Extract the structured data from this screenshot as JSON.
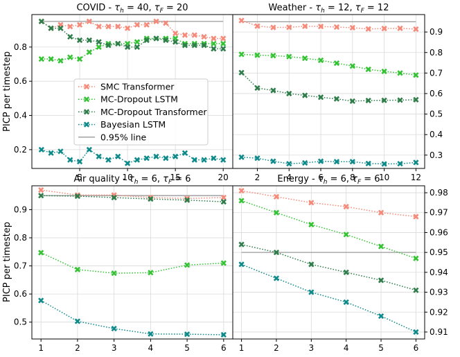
{
  "figure": {
    "ylabel": "PICP per timestep",
    "legend": {
      "items": [
        {
          "name": "SMC Transformer",
          "color": "#f58a7a",
          "kind": "marker"
        },
        {
          "name": "MC-Dropout LSTM",
          "color": "#35c335",
          "kind": "marker"
        },
        {
          "name": "MC-Dropout Transformer",
          "color": "#2f7d4a",
          "kind": "marker"
        },
        {
          "name": "Bayesian LSTM",
          "color": "#0f8a8a",
          "kind": "marker"
        },
        {
          "name": "0.95% line",
          "color": "#999999",
          "kind": "line"
        }
      ]
    },
    "colors": {
      "smc": "#f58a7a",
      "mcd_lstm": "#35c335",
      "mcd_trans": "#2f7d4a",
      "blstm": "#0f8a8a",
      "ref": "#999999",
      "grid": "#d9d9d9"
    }
  },
  "chart_data": [
    {
      "type": "line",
      "title_prefix": "COVID - ",
      "title_params": [
        {
          "sym": "τ",
          "sub": "h",
          "val": "40"
        },
        {
          "sym": "τ",
          "sub": "F",
          "val": "20"
        }
      ],
      "xlabel": "",
      "ylabel": "PICP per timestep",
      "x": [
        1,
        2,
        3,
        4,
        5,
        6,
        7,
        8,
        9,
        10,
        11,
        12,
        13,
        14,
        15,
        16,
        17,
        18,
        19,
        20
      ],
      "xlim": [
        0,
        21
      ],
      "ylim": [
        0.09,
        0.99
      ],
      "xticks": [
        "5",
        "10",
        "15",
        "20"
      ],
      "xtick_values": [
        5,
        10,
        15,
        20
      ],
      "yticks": [
        "0.2",
        "0.4",
        "0.6",
        "0.8"
      ],
      "ytick_values": [
        0.2,
        0.4,
        0.6,
        0.8
      ],
      "yaxis_side": "left",
      "reference_line": 0.95,
      "series": [
        {
          "name": "SMC Transformer",
          "values": [
            0.95,
            0.91,
            0.93,
            0.92,
            0.93,
            0.95,
            0.92,
            0.92,
            0.92,
            0.91,
            0.93,
            0.93,
            0.95,
            0.94,
            0.88,
            0.87,
            0.87,
            0.86,
            0.85,
            0.85
          ]
        },
        {
          "name": "MC-Dropout LSTM",
          "values": [
            0.73,
            0.73,
            0.72,
            0.74,
            0.73,
            0.77,
            0.8,
            0.82,
            0.82,
            0.82,
            0.83,
            0.85,
            0.85,
            0.85,
            0.85,
            0.82,
            0.82,
            0.82,
            0.82,
            0.82
          ]
        },
        {
          "name": "MC-Dropout Transformer",
          "values": [
            0.95,
            0.91,
            0.91,
            0.86,
            0.84,
            0.84,
            0.83,
            0.81,
            0.82,
            0.8,
            0.8,
            0.84,
            0.85,
            0.84,
            0.83,
            0.81,
            0.81,
            0.81,
            0.79,
            0.79
          ]
        },
        {
          "name": "Bayesian LSTM",
          "values": [
            0.2,
            0.18,
            0.19,
            0.14,
            0.13,
            0.2,
            0.16,
            0.14,
            0.16,
            0.12,
            0.14,
            0.15,
            0.16,
            0.15,
            0.16,
            0.18,
            0.14,
            0.14,
            0.15,
            0.14
          ]
        }
      ]
    },
    {
      "type": "line",
      "title_prefix": "Weather - ",
      "title_params": [
        {
          "sym": "τ",
          "sub": "h",
          "val": "12"
        },
        {
          "sym": "τ",
          "sub": "F",
          "val": "12"
        }
      ],
      "xlabel": "",
      "ylabel": "",
      "x": [
        1,
        2,
        3,
        4,
        5,
        6,
        7,
        8,
        9,
        10,
        11,
        12
      ],
      "xlim": [
        0.45,
        12.55
      ],
      "ylim": [
        0.235,
        0.985
      ],
      "xticks": [
        "2",
        "4",
        "6",
        "8",
        "10",
        "12"
      ],
      "xtick_values": [
        2,
        4,
        6,
        8,
        10,
        12
      ],
      "yticks": [
        "0.3",
        "0.4",
        "0.5",
        "0.6",
        "0.7",
        "0.8",
        "0.9"
      ],
      "ytick_values": [
        0.3,
        0.4,
        0.5,
        0.6,
        0.7,
        0.8,
        0.9
      ],
      "yaxis_side": "right",
      "reference_line": 0.95,
      "series": [
        {
          "name": "SMC Transformer",
          "values": [
            0.956,
            0.929,
            0.922,
            0.923,
            0.928,
            0.927,
            0.924,
            0.921,
            0.915,
            0.917,
            0.918,
            0.914
          ]
        },
        {
          "name": "MC-Dropout LSTM",
          "values": [
            0.791,
            0.787,
            0.785,
            0.78,
            0.772,
            0.762,
            0.748,
            0.734,
            0.718,
            0.708,
            0.7,
            0.69
          ]
        },
        {
          "name": "MC-Dropout Transformer",
          "values": [
            0.702,
            0.627,
            0.615,
            0.6,
            0.591,
            0.582,
            0.574,
            0.563,
            0.566,
            0.567,
            0.568,
            0.57
          ]
        },
        {
          "name": "Bayesian LSTM",
          "values": [
            0.29,
            0.285,
            0.27,
            0.258,
            0.262,
            0.27,
            0.268,
            0.268,
            0.259,
            0.257,
            0.258,
            0.264
          ]
        }
      ]
    },
    {
      "type": "line",
      "title_prefix": "Air quality - ",
      "title_params": [
        {
          "sym": "τ",
          "sub": "h",
          "val": "6"
        },
        {
          "sym": "τ",
          "sub": "F",
          "val": "6"
        }
      ],
      "xlabel": "",
      "ylabel": "PICP per timestep",
      "x": [
        1,
        2,
        3,
        4,
        5,
        6
      ],
      "xlim": [
        0.75,
        6.25
      ],
      "ylim": [
        0.44,
        0.985
      ],
      "xticks": [
        "1",
        "2",
        "3",
        "4",
        "5",
        "6"
      ],
      "xtick_values": [
        1,
        2,
        3,
        4,
        5,
        6
      ],
      "yticks": [
        "0.5",
        "0.6",
        "0.7",
        "0.8",
        "0.9"
      ],
      "ytick_values": [
        0.5,
        0.6,
        0.7,
        0.8,
        0.9
      ],
      "yaxis_side": "left",
      "reference_line": 0.95,
      "series": [
        {
          "name": "SMC Transformer",
          "values": [
            0.97,
            0.952,
            0.952,
            0.943,
            0.94,
            0.943
          ]
        },
        {
          "name": "MC-Dropout LSTM",
          "values": [
            0.747,
            0.687,
            0.674,
            0.676,
            0.703,
            0.71
          ]
        },
        {
          "name": "MC-Dropout Transformer",
          "values": [
            0.95,
            0.948,
            0.943,
            0.938,
            0.934,
            0.928
          ]
        },
        {
          "name": "Bayesian LSTM",
          "values": [
            0.577,
            0.503,
            0.477,
            0.458,
            0.457,
            0.455
          ]
        }
      ]
    },
    {
      "type": "line",
      "title_prefix": "Energy - ",
      "title_params": [
        {
          "sym": "τ",
          "sub": "h",
          "val": "6"
        },
        {
          "sym": "τ",
          "sub": "F",
          "val": "6"
        }
      ],
      "xlabel": "",
      "ylabel": "",
      "x": [
        1,
        2,
        3,
        4,
        5,
        6
      ],
      "xlim": [
        0.75,
        6.25
      ],
      "ylim": [
        0.9065,
        0.9835
      ],
      "xticks": [
        "1",
        "2",
        "3",
        "4",
        "5",
        "6"
      ],
      "xtick_values": [
        1,
        2,
        3,
        4,
        5,
        6
      ],
      "yticks": [
        "0.91",
        "0.92",
        "0.93",
        "0.94",
        "0.95",
        "0.96",
        "0.97",
        "0.98"
      ],
      "ytick_values": [
        0.91,
        0.92,
        0.93,
        0.94,
        0.95,
        0.96,
        0.97,
        0.98
      ],
      "yaxis_side": "right",
      "reference_line": 0.95,
      "series": [
        {
          "name": "SMC Transformer",
          "values": [
            0.981,
            0.978,
            0.975,
            0.973,
            0.97,
            0.968
          ]
        },
        {
          "name": "MC-Dropout LSTM",
          "values": [
            0.976,
            0.97,
            0.964,
            0.959,
            0.953,
            0.947
          ]
        },
        {
          "name": "MC-Dropout Transformer",
          "values": [
            0.954,
            0.95,
            0.944,
            0.94,
            0.936,
            0.931
          ]
        },
        {
          "name": "Bayesian LSTM",
          "values": [
            0.944,
            0.937,
            0.93,
            0.925,
            0.918,
            0.91
          ]
        }
      ]
    }
  ]
}
